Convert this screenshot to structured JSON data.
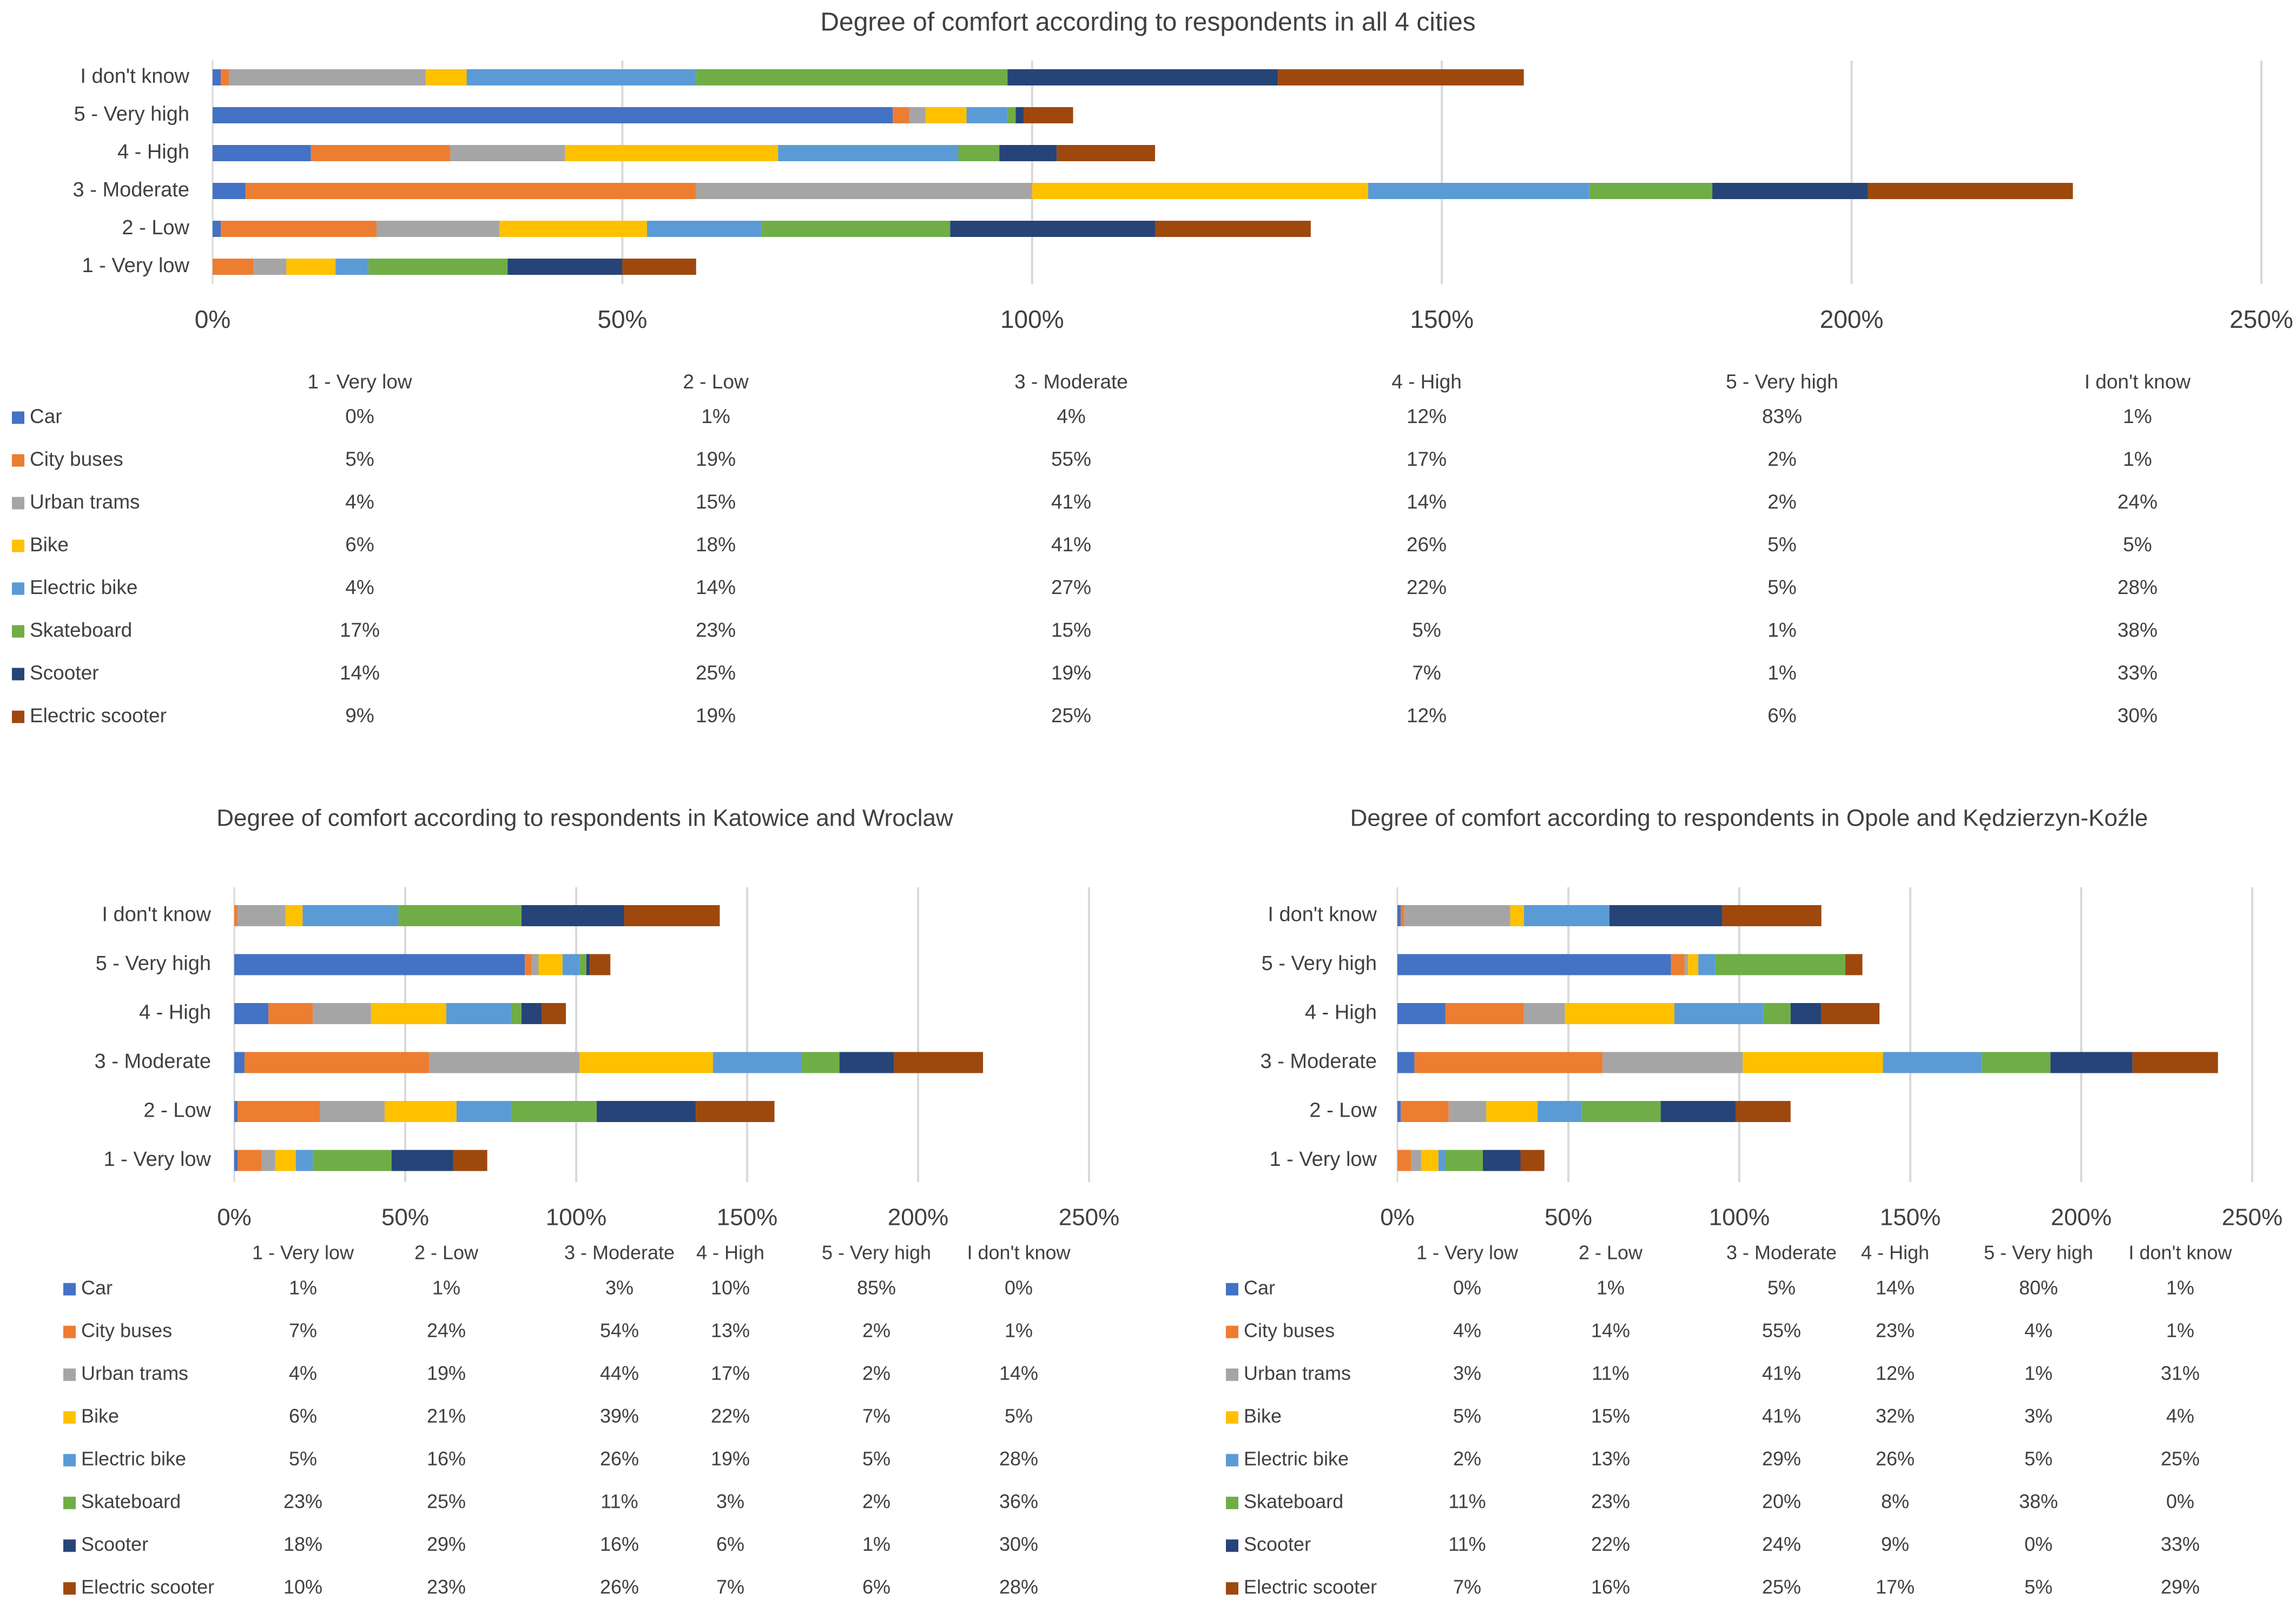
{
  "colors": {
    "Car": "#4472C4",
    "City buses": "#ED7D31",
    "Urban trams": "#A5A5A5",
    "Bike": "#FFC000",
    "Electric bike": "#5B9BD5",
    "Skateboard": "#70AD47",
    "Scooter": "#264478",
    "Electric scooter": "#9E480E"
  },
  "chart_data": [
    {
      "type": "bar",
      "orientation": "horizontal",
      "stacked": true,
      "title": "Degree of comfort according to respondents in all 4 cities",
      "categories": [
        "1 - Very low",
        "2 - Low",
        "3 - Moderate",
        "4 - High",
        "5 - Very high",
        "I don't know"
      ],
      "xlim": [
        0,
        250
      ],
      "xticks": [
        "0%",
        "50%",
        "100%",
        "150%",
        "200%",
        "250%"
      ],
      "grid": true,
      "series": [
        {
          "name": "Car",
          "values": [
            0,
            1,
            4,
            12,
            83,
            1
          ]
        },
        {
          "name": "City buses",
          "values": [
            5,
            19,
            55,
            17,
            2,
            1
          ]
        },
        {
          "name": "Urban trams",
          "values": [
            4,
            15,
            41,
            14,
            2,
            24
          ]
        },
        {
          "name": "Bike",
          "values": [
            6,
            18,
            41,
            26,
            5,
            5
          ]
        },
        {
          "name": "Electric bike",
          "values": [
            4,
            14,
            27,
            22,
            5,
            28
          ]
        },
        {
          "name": "Skateboard",
          "values": [
            17,
            23,
            15,
            5,
            1,
            38
          ]
        },
        {
          "name": "Scooter",
          "values": [
            14,
            25,
            19,
            7,
            1,
            33
          ]
        },
        {
          "name": "Electric scooter",
          "values": [
            9,
            19,
            25,
            12,
            6,
            30
          ]
        }
      ]
    },
    {
      "type": "bar",
      "orientation": "horizontal",
      "stacked": true,
      "title": "Degree of comfort according to respondents in Katowice and Wroclaw",
      "categories": [
        "1 - Very low",
        "2 - Low",
        "3 - Moderate",
        "4 - High",
        "5 - Very high",
        "I don't know"
      ],
      "xlim": [
        0,
        250
      ],
      "xticks": [
        "0%",
        "50%",
        "100%",
        "150%",
        "200%",
        "250%"
      ],
      "grid": true,
      "series": [
        {
          "name": "Car",
          "values": [
            1,
            1,
            3,
            10,
            85,
            0
          ]
        },
        {
          "name": "City buses",
          "values": [
            7,
            24,
            54,
            13,
            2,
            1
          ]
        },
        {
          "name": "Urban trams",
          "values": [
            4,
            19,
            44,
            17,
            2,
            14
          ]
        },
        {
          "name": "Bike",
          "values": [
            6,
            21,
            39,
            22,
            7,
            5
          ]
        },
        {
          "name": "Electric bike",
          "values": [
            5,
            16,
            26,
            19,
            5,
            28
          ]
        },
        {
          "name": "Skateboard",
          "values": [
            23,
            25,
            11,
            3,
            2,
            36
          ]
        },
        {
          "name": "Scooter",
          "values": [
            18,
            29,
            16,
            6,
            1,
            30
          ]
        },
        {
          "name": "Electric scooter",
          "values": [
            10,
            23,
            26,
            7,
            6,
            28
          ]
        }
      ]
    },
    {
      "type": "bar",
      "orientation": "horizontal",
      "stacked": true,
      "title": "Degree of comfort according to respondents in Opole and Kędzierzyn-Koźle",
      "categories": [
        "1 - Very low",
        "2 - Low",
        "3 - Moderate",
        "4 - High",
        "5 - Very high",
        "I don't know"
      ],
      "xlim": [
        0,
        250
      ],
      "xticks": [
        "0%",
        "50%",
        "100%",
        "150%",
        "200%",
        "250%"
      ],
      "grid": true,
      "series": [
        {
          "name": "Car",
          "values": [
            0,
            1,
            5,
            14,
            80,
            1
          ]
        },
        {
          "name": "City buses",
          "values": [
            4,
            14,
            55,
            23,
            4,
            1
          ]
        },
        {
          "name": "Urban trams",
          "values": [
            3,
            11,
            41,
            12,
            1,
            31
          ]
        },
        {
          "name": "Bike",
          "values": [
            5,
            15,
            41,
            32,
            3,
            4
          ]
        },
        {
          "name": "Electric bike",
          "values": [
            2,
            13,
            29,
            26,
            5,
            25
          ]
        },
        {
          "name": "Skateboard",
          "values": [
            11,
            23,
            20,
            8,
            38,
            0
          ]
        },
        {
          "name": "Scooter",
          "values": [
            11,
            22,
            24,
            9,
            0,
            33
          ]
        },
        {
          "name": "Electric scooter",
          "values": [
            7,
            16,
            25,
            17,
            5,
            29
          ]
        }
      ]
    }
  ]
}
